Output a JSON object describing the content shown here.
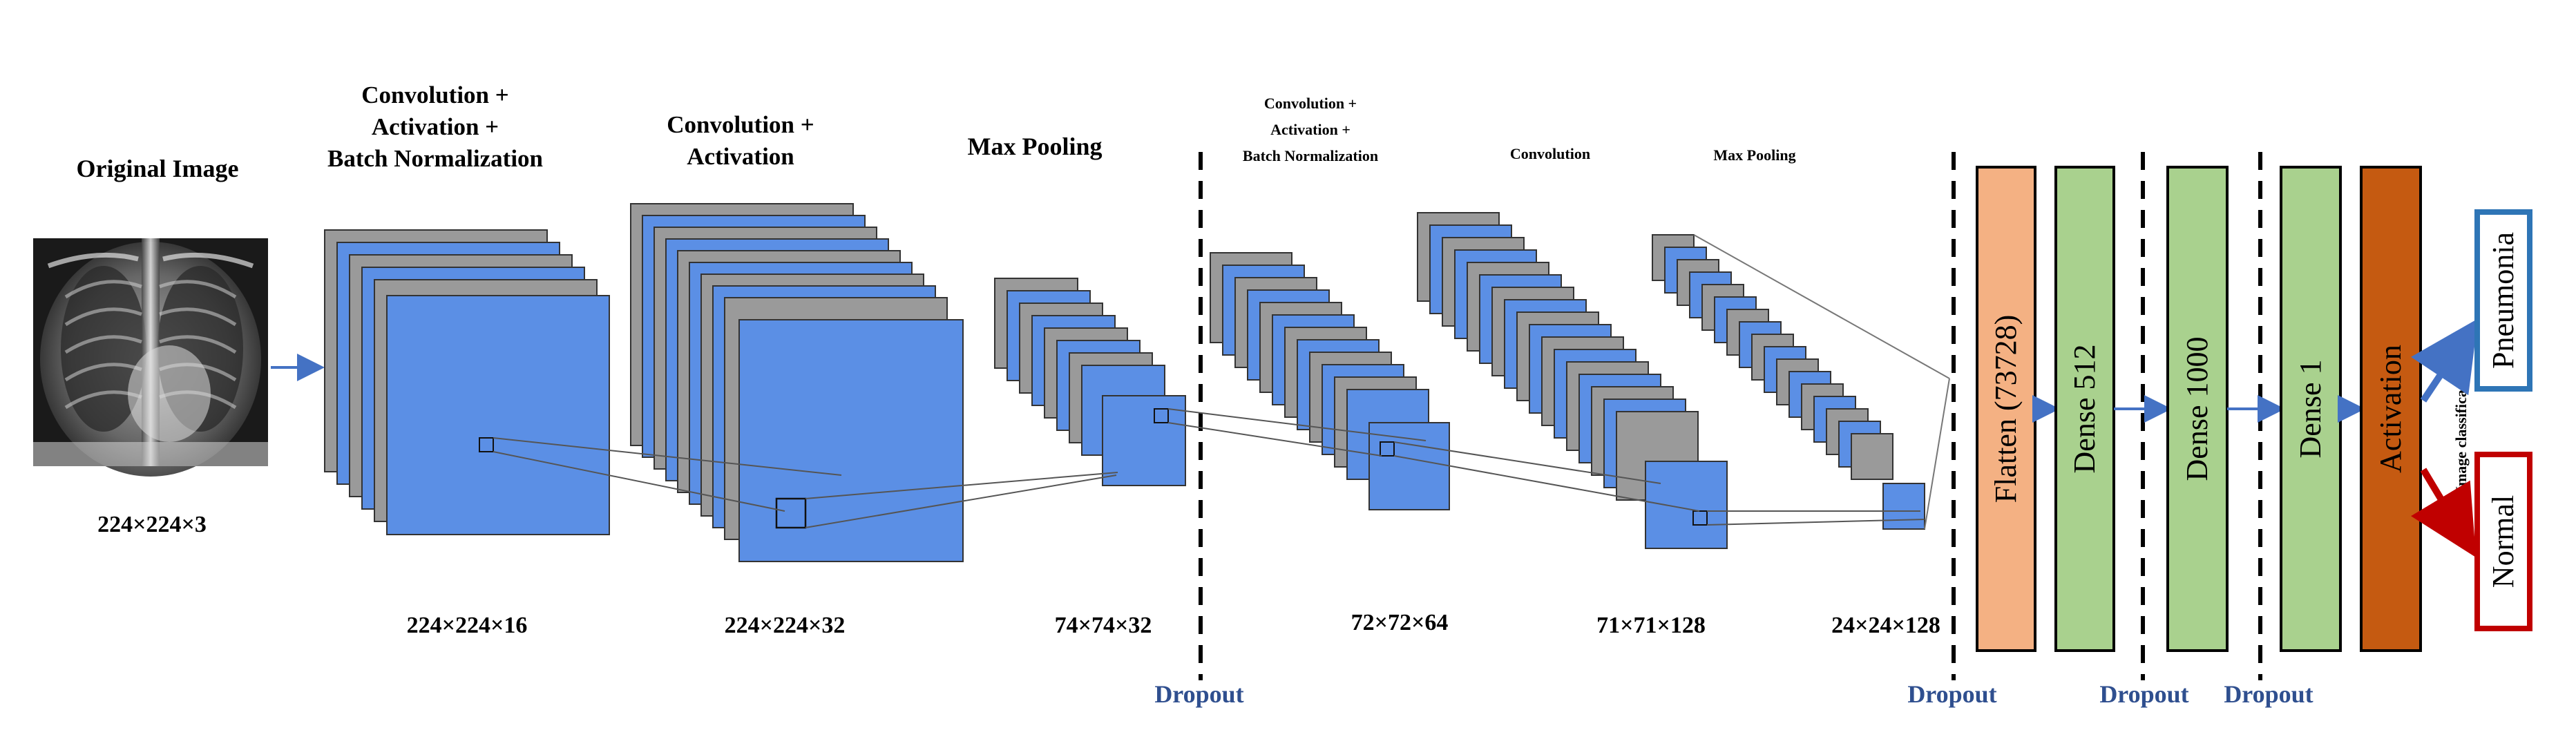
{
  "input": {
    "title": "Original Image",
    "dims": "224×224×3"
  },
  "blocks": [
    {
      "id": "conv1",
      "title_lines": [
        "Convolution +",
        "Activation +",
        "Batch Normalization"
      ],
      "dims": "224×224×16"
    },
    {
      "id": "conv2",
      "title_lines": [
        "Convolution +",
        "Activation"
      ],
      "dims": "224×224×32"
    },
    {
      "id": "pool1",
      "title_lines": [
        "Max Pooling"
      ],
      "dims": "74×74×32"
    },
    {
      "id": "conv3",
      "title_lines": [
        "Convolution +",
        "Activation +",
        "Batch Normalization"
      ],
      "dims": "72×72×64"
    },
    {
      "id": "conv4",
      "title_lines": [
        "Convolution"
      ],
      "dims": "71×71×128"
    },
    {
      "id": "pool2",
      "title_lines": [
        "Max Pooling"
      ],
      "dims": "24×24×128"
    }
  ],
  "dropout_label": "Dropout",
  "dense_layers": [
    {
      "id": "flatten",
      "label": "Flatten (73728)",
      "color": "#f4b183"
    },
    {
      "id": "dense512",
      "label": "Dense 512",
      "color": "#a9d18e"
    },
    {
      "id": "dense1000",
      "label": "Dense 1000",
      "color": "#a9d18e"
    },
    {
      "id": "dense1",
      "label": "Dense 1",
      "color": "#a9d18e"
    },
    {
      "id": "activation",
      "label": "Activation",
      "color": "#c55a11"
    }
  ],
  "classification": {
    "label": "Image classification",
    "classes": [
      {
        "name": "Pneumonia",
        "color": "#2e75b6"
      },
      {
        "name": "Normal",
        "color": "#c00000"
      }
    ]
  },
  "colors": {
    "feature_map_blue": "#5b8fe5",
    "feature_map_gray": "#9a9a9a",
    "arrow_blue": "#4472c4"
  }
}
